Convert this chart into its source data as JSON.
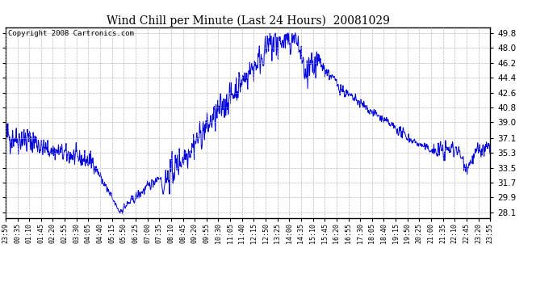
{
  "title": "Wind Chill per Minute (Last 24 Hours)  20081029",
  "copyright": "Copyright 2008 Cartronics.com",
  "line_color": "#0000dd",
  "background_color": "#ffffff",
  "grid_color": "#aaaaaa",
  "yticks": [
    28.1,
    29.9,
    31.7,
    33.5,
    35.3,
    37.1,
    39.0,
    40.8,
    42.6,
    44.4,
    46.2,
    48.0,
    49.8
  ],
  "ylim": [
    27.4,
    50.5
  ],
  "xtick_labels": [
    "23:59",
    "00:35",
    "01:10",
    "01:45",
    "02:20",
    "02:55",
    "03:30",
    "04:05",
    "04:40",
    "05:15",
    "05:50",
    "06:25",
    "07:00",
    "07:35",
    "08:10",
    "08:45",
    "09:20",
    "09:55",
    "10:30",
    "11:05",
    "11:40",
    "12:15",
    "12:50",
    "13:25",
    "14:00",
    "14:35",
    "15:10",
    "15:45",
    "16:20",
    "16:55",
    "17:30",
    "18:05",
    "18:40",
    "19:15",
    "19:50",
    "20:25",
    "21:00",
    "21:35",
    "22:10",
    "22:45",
    "23:20",
    "23:55"
  ],
  "num_points": 1440
}
